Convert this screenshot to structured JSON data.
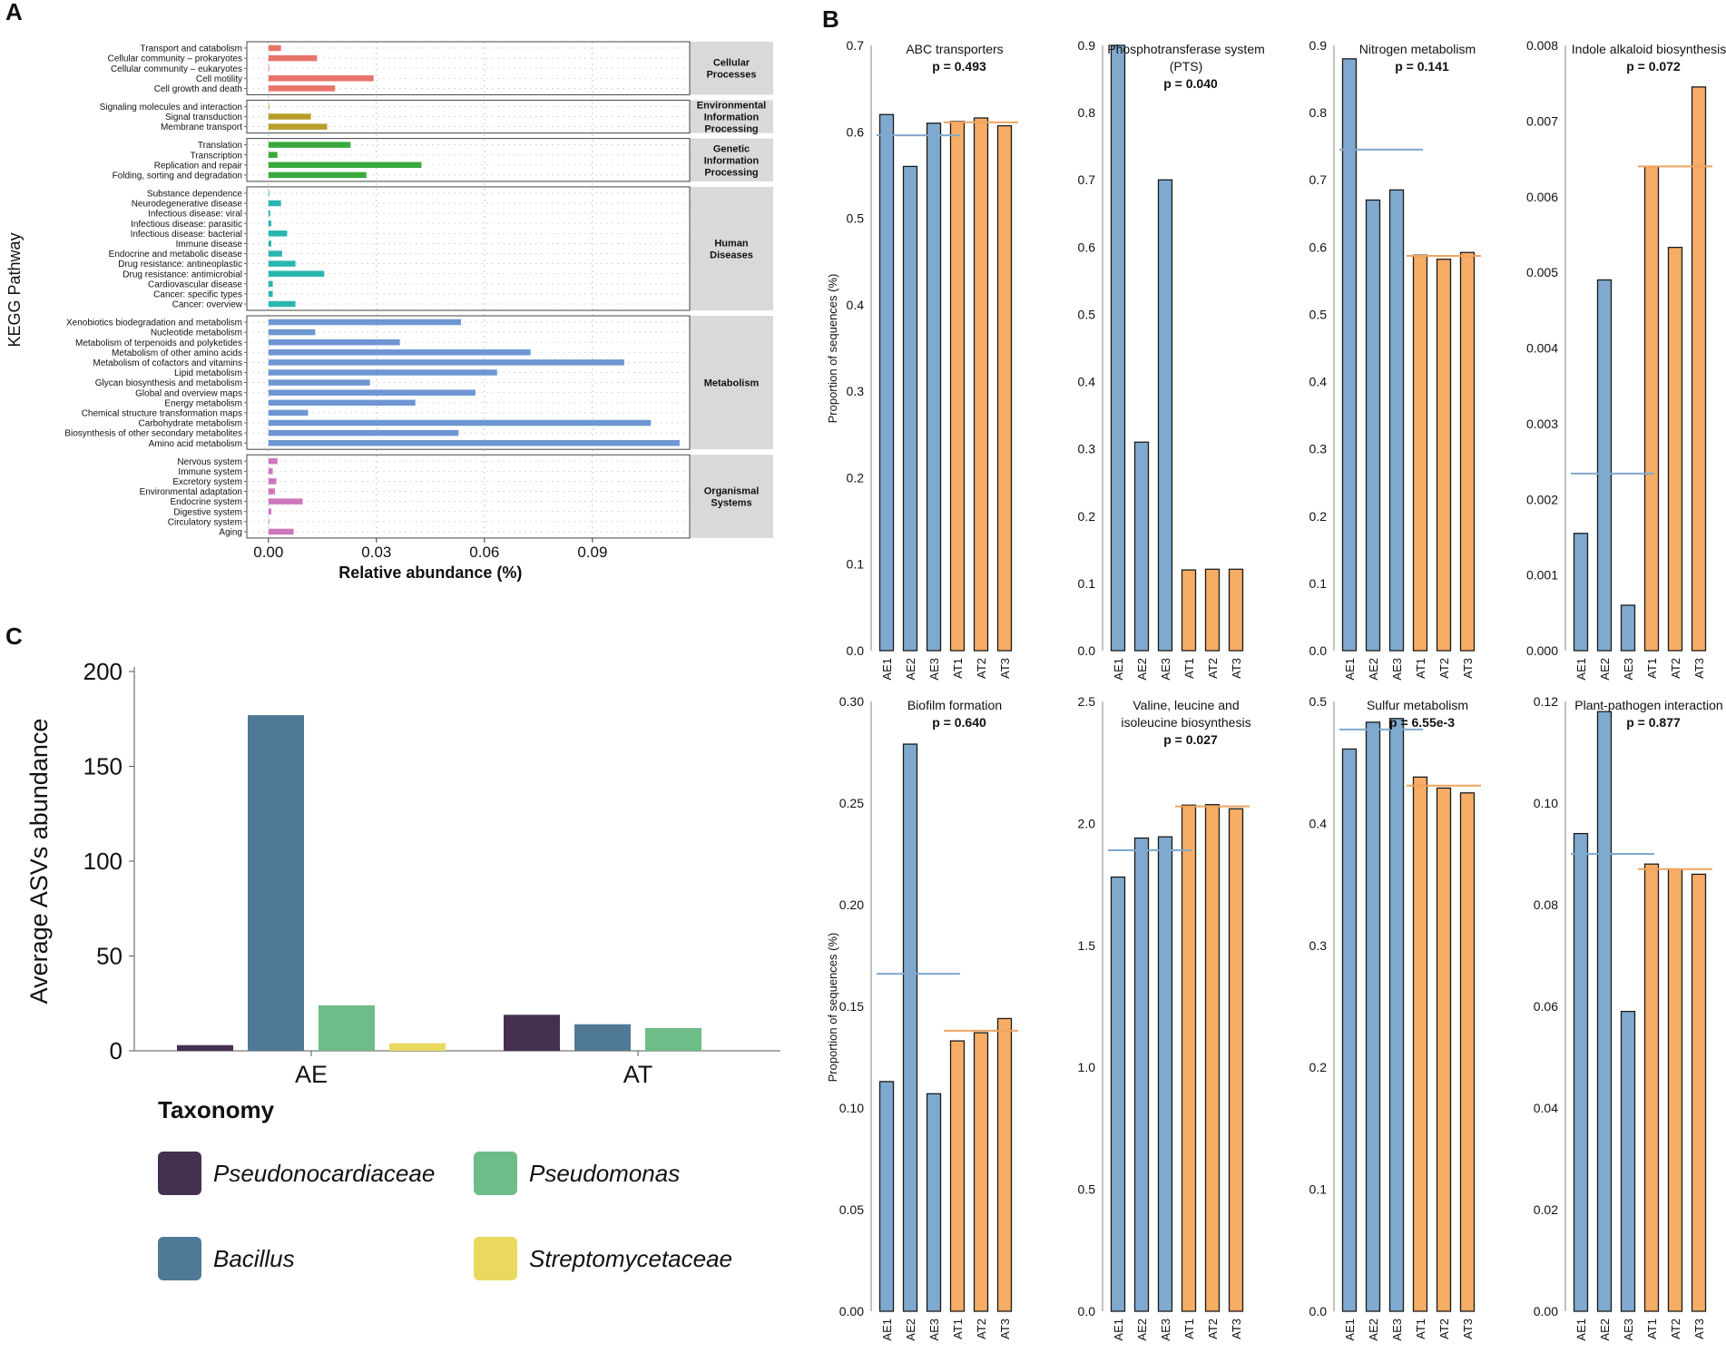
{
  "panels": {
    "a": "A",
    "b": "B",
    "c": "C"
  },
  "colors": {
    "cellular": "#e8736a",
    "environmental": "#b59f2b",
    "genetic": "#3aaa3c",
    "human": "#2ab6b0",
    "metabolism": "#6d96d2",
    "organismal": "#cc78bd",
    "AE": "#7fa9ce",
    "AT": "#f7ad65",
    "AE_mean": "#7fa9ce",
    "AT_mean": "#f0a45c",
    "Pseudonocardiaceae": "#45304f",
    "Bacillus": "#507996",
    "Pseudomonas": "#6ebc88",
    "Streptomycetaceae": "#e9d95e"
  },
  "chart_data": [
    {
      "id": "A",
      "type": "bar",
      "orientation": "horizontal",
      "xlabel": "Relative abundance (%)",
      "ylabel": "KEGG Pathway",
      "xlim": [
        -0.006,
        0.117
      ],
      "xticks": [
        0.0,
        0.03,
        0.06,
        0.09
      ],
      "xtick_labels": [
        "0.00",
        "0.03",
        "0.06",
        "0.09"
      ],
      "grid": true,
      "groups": [
        {
          "name": "Cellular Processes",
          "label_lines": [
            "Cellular",
            "Processes"
          ],
          "color_key": "cellular",
          "items": [
            {
              "label": "Transport and catabolism",
              "value": 0.0035
            },
            {
              "label": "Cellular community – prokaryotes",
              "value": 0.0135
            },
            {
              "label": "Cellular community – eukaryotes",
              "value": 0.0002
            },
            {
              "label": "Cell motility",
              "value": 0.0292
            },
            {
              "label": "Cell growth and death",
              "value": 0.0185
            }
          ]
        },
        {
          "name": "Environmental Information Processing",
          "label_lines": [
            "Environmental",
            "Information",
            "Processing"
          ],
          "color_key": "environmental",
          "items": [
            {
              "label": "Signaling molecules and interaction",
              "value": 0.0002
            },
            {
              "label": "Signal transduction",
              "value": 0.0118
            },
            {
              "label": "Membrane transport",
              "value": 0.0163
            }
          ]
        },
        {
          "name": "Genetic Information Processing",
          "label_lines": [
            "Genetic",
            "Information",
            "Processing"
          ],
          "color_key": "genetic",
          "items": [
            {
              "label": "Translation",
              "value": 0.0228
            },
            {
              "label": "Transcription",
              "value": 0.0025
            },
            {
              "label": "Replication and repair",
              "value": 0.0425
            },
            {
              "label": "Folding, sorting and degradation",
              "value": 0.0272
            }
          ]
        },
        {
          "name": "Human Diseases",
          "label_lines": [
            "Human",
            "Diseases"
          ],
          "color_key": "human",
          "items": [
            {
              "label": "Substance dependence",
              "value": 0.0002
            },
            {
              "label": "Neurodegenerative disease",
              "value": 0.0035
            },
            {
              "label": "Infectious disease: viral",
              "value": 0.0005
            },
            {
              "label": "Infectious disease: parasitic",
              "value": 0.0008
            },
            {
              "label": "Infectious disease: bacterial",
              "value": 0.0052
            },
            {
              "label": "Immune disease",
              "value": 0.0008
            },
            {
              "label": "Endocrine and metabolic disease",
              "value": 0.0038
            },
            {
              "label": "Drug resistance: antineoplastic",
              "value": 0.0075
            },
            {
              "label": "Drug resistance: antimicrobial",
              "value": 0.0155
            },
            {
              "label": "Cardiovascular disease",
              "value": 0.0012
            },
            {
              "label": "Cancer: specific types",
              "value": 0.0012
            },
            {
              "label": "Cancer: overview",
              "value": 0.0075
            }
          ]
        },
        {
          "name": "Metabolism",
          "label_lines": [
            "Metabolism"
          ],
          "color_key": "metabolism",
          "items": [
            {
              "label": "Xenobiotics biodegradation and metabolism",
              "value": 0.0535
            },
            {
              "label": "Nucleotide metabolism",
              "value": 0.013
            },
            {
              "label": "Metabolism of terpenoids and polyketides",
              "value": 0.0365
            },
            {
              "label": "Metabolism of other amino acids",
              "value": 0.0728
            },
            {
              "label": "Metabolism of cofactors and vitamins",
              "value": 0.0988
            },
            {
              "label": "Lipid metabolism",
              "value": 0.0635
            },
            {
              "label": "Glycan biosynthesis and metabolism",
              "value": 0.0282
            },
            {
              "label": "Global and overview maps",
              "value": 0.0575
            },
            {
              "label": "Energy metabolism",
              "value": 0.0408
            },
            {
              "label": "Chemical structure transformation maps",
              "value": 0.011
            },
            {
              "label": "Carbohydrate metabolism",
              "value": 0.1062
            },
            {
              "label": "Biosynthesis of other secondary metabolites",
              "value": 0.0528
            },
            {
              "label": "Amino acid metabolism",
              "value": 0.1142
            }
          ]
        },
        {
          "name": "Organismal Systems",
          "label_lines": [
            "Organismal",
            "Systems"
          ],
          "color_key": "organismal",
          "items": [
            {
              "label": "Nervous system",
              "value": 0.0025
            },
            {
              "label": "Immune system",
              "value": 0.0012
            },
            {
              "label": "Excretory system",
              "value": 0.0022
            },
            {
              "label": "Environmental adaptation",
              "value": 0.0018
            },
            {
              "label": "Endocrine system",
              "value": 0.0095
            },
            {
              "label": "Digestive system",
              "value": 0.0008
            },
            {
              "label": "Circulatory system",
              "value": 0.0002
            },
            {
              "label": "Aging",
              "value": 0.007
            }
          ]
        }
      ]
    },
    {
      "id": "B",
      "type": "bar",
      "ylabel": "Proportion of sequences (%)",
      "categories": [
        "AE1",
        "AE2",
        "AE3",
        "AT1",
        "AT2",
        "AT3"
      ],
      "subplots": [
        {
          "title_lines": [
            "ABC transporters",
            "p = 0.493"
          ],
          "ylim": [
            0,
            0.7
          ],
          "yticks": [
            0.0,
            0.1,
            0.2,
            0.3,
            0.4,
            0.5,
            0.6,
            0.7
          ],
          "ytick_labels": [
            "0.0",
            "0.1",
            "0.2",
            "0.3",
            "0.4",
            "0.5",
            "0.6",
            "0.7"
          ],
          "values": [
            0.62,
            0.56,
            0.61,
            0.612,
            0.616,
            0.607
          ],
          "AE_mean": 0.596,
          "AT_mean": 0.611
        },
        {
          "title_lines": [
            "Phosphotransferase system",
            "(PTS)",
            "p = 0.040"
          ],
          "ylim": [
            0,
            0.9
          ],
          "yticks": [
            0.0,
            0.1,
            0.2,
            0.3,
            0.4,
            0.5,
            0.6,
            0.7,
            0.8,
            0.9
          ],
          "ytick_labels": [
            "0.0",
            "0.1",
            "0.2",
            "0.3",
            "0.4",
            "0.5",
            "0.6",
            "0.7",
            "0.8",
            "0.9"
          ],
          "values": [
            0.9,
            0.31,
            0.7,
            0.12,
            0.121,
            0.121
          ]
        },
        {
          "title_lines": [
            "Nitrogen metabolism",
            "p = 0.141"
          ],
          "ylim": [
            0,
            0.9
          ],
          "yticks": [
            0.0,
            0.1,
            0.2,
            0.3,
            0.4,
            0.5,
            0.6,
            0.7,
            0.8,
            0.9
          ],
          "ytick_labels": [
            "0.0",
            "0.1",
            "0.2",
            "0.3",
            "0.4",
            "0.5",
            "0.6",
            "0.7",
            "0.8",
            "0.9"
          ],
          "values": [
            0.88,
            0.67,
            0.685,
            0.588,
            0.582,
            0.592
          ],
          "AE_mean": 0.745,
          "AT_mean": 0.587
        },
        {
          "title_lines": [
            "Indole alkaloid biosynthesis",
            "p = 0.072"
          ],
          "ylim": [
            0,
            0.008
          ],
          "yticks": [
            0.0,
            0.001,
            0.002,
            0.003,
            0.004,
            0.005,
            0.006,
            0.007,
            0.008
          ],
          "ytick_labels": [
            "0.000",
            "0.001",
            "0.002",
            "0.003",
            "0.004",
            "0.005",
            "0.006",
            "0.007",
            "0.008"
          ],
          "values": [
            0.00155,
            0.0049,
            0.0006,
            0.0064,
            0.00533,
            0.00745
          ],
          "AE_mean": 0.00234,
          "AT_mean": 0.0064
        },
        {
          "title_lines": [
            "Biofilm formation",
            "p = 0.640"
          ],
          "ylim": [
            0,
            0.3
          ],
          "yticks": [
            0.0,
            0.05,
            0.1,
            0.15,
            0.2,
            0.25,
            0.3
          ],
          "ytick_labels": [
            "0.00",
            "0.05",
            "0.10",
            "0.15",
            "0.20",
            "0.25",
            "0.30"
          ],
          "values": [
            0.113,
            0.279,
            0.107,
            0.133,
            0.137,
            0.144
          ],
          "AE_mean": 0.166,
          "AT_mean": 0.138
        },
        {
          "title_lines": [
            "Valine, leucine and",
            "isoleucine biosynthesis",
            "p = 0.027"
          ],
          "ylim": [
            0,
            2.5
          ],
          "yticks": [
            0.0,
            0.5,
            1.0,
            1.5,
            2.0,
            2.5
          ],
          "ytick_labels": [
            "0.0",
            "0.5",
            "1.0",
            "1.5",
            "2.0",
            "2.5"
          ],
          "values": [
            1.78,
            1.94,
            1.945,
            2.075,
            2.077,
            2.06
          ],
          "AE_mean": 1.89,
          "AT_mean": 2.07
        },
        {
          "title_lines": [
            "Sulfur metabolism",
            "p = 6.55e-3"
          ],
          "ylim": [
            0,
            0.5
          ],
          "yticks": [
            0.0,
            0.1,
            0.2,
            0.3,
            0.4,
            0.5
          ],
          "ytick_labels": [
            "0.0",
            "0.1",
            "0.2",
            "0.3",
            "0.4",
            "0.5"
          ],
          "values": [
            0.461,
            0.483,
            0.486,
            0.438,
            0.429,
            0.425
          ],
          "AE_mean": 0.477,
          "AT_mean": 0.431
        },
        {
          "title_lines": [
            "Plant-pathogen interaction",
            "p = 0.877"
          ],
          "ylim": [
            0,
            0.12
          ],
          "yticks": [
            0.0,
            0.02,
            0.04,
            0.06,
            0.08,
            0.1,
            0.12
          ],
          "ytick_labels": [
            "0.00",
            "0.02",
            "0.04",
            "0.06",
            "0.08",
            "0.10",
            "0.12"
          ],
          "values": [
            0.094,
            0.118,
            0.059,
            0.088,
            0.087,
            0.086
          ],
          "AE_mean": 0.09,
          "AT_mean": 0.087
        }
      ]
    },
    {
      "id": "C",
      "type": "bar",
      "ylabel": "Average ASVs abundance",
      "categories": [
        "AE",
        "AT"
      ],
      "ylim": [
        0,
        200
      ],
      "yticks": [
        0,
        50,
        100,
        150,
        200
      ],
      "ytick_labels": [
        "0",
        "50",
        "100",
        "150",
        "200"
      ],
      "series": [
        {
          "name": "Pseudonocardiaceae",
          "values": [
            3,
            19
          ]
        },
        {
          "name": "Bacillus",
          "values": [
            177,
            14
          ]
        },
        {
          "name": "Pseudomonas",
          "values": [
            24,
            12
          ]
        },
        {
          "name": "Streptomycetaceae",
          "values": [
            4,
            0
          ]
        }
      ],
      "legend_title": "Taxonomy"
    }
  ]
}
